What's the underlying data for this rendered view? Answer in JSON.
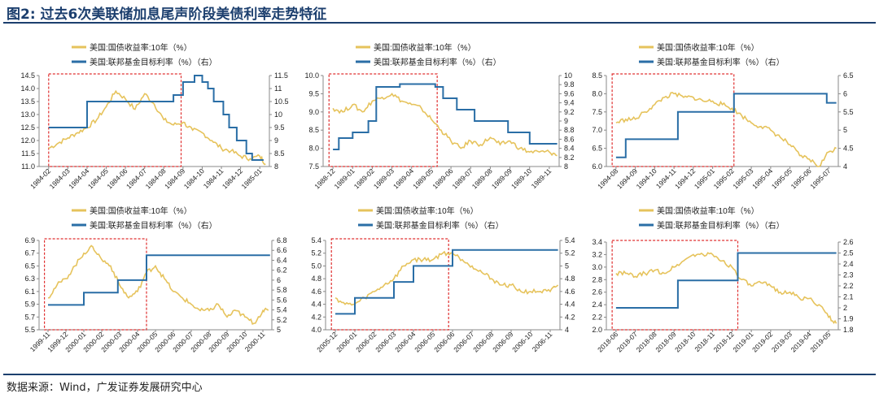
{
  "figure": {
    "title": "图2:  过去6次美联储加息尾声阶段美债利率走势特征",
    "source": "数据来源：Wind，广发证券发展研究中心"
  },
  "legend": {
    "yield": "美国:国债收益率:10年（%）",
    "fed": "美国:联邦基金目标利率（%）（右）"
  },
  "colors": {
    "yield": "#e6c35c",
    "fed": "#2a6ea6",
    "highlight": "#e03030",
    "title": "#1c3f6e"
  },
  "chart_data": [
    {
      "type": "line",
      "x_ticks": [
        "1984-02",
        "1984-03",
        "1984-04",
        "1984-05",
        "1984-06",
        "1984-07",
        "1984-08",
        "1984-09",
        "1984-10",
        "1984-11",
        "1984-12",
        "1985-01"
      ],
      "left_axis": {
        "ylim": [
          11.0,
          14.5
        ],
        "ticks": [
          "11.0",
          "11.5",
          "12.0",
          "12.5",
          "13.0",
          "13.5",
          "14.0",
          "14.5"
        ]
      },
      "right_axis": {
        "ylim": [
          8.0,
          11.5
        ],
        "ticks": [
          "8",
          "8.5",
          "9",
          "9.5",
          "10",
          "10.5",
          "11",
          "11.5"
        ]
      },
      "series": [
        {
          "name": "美国:国债收益率:10年（%）",
          "axis": "left",
          "x": [
            0,
            0.5,
            1,
            1.5,
            2,
            2.5,
            3,
            3.5,
            4,
            4.5,
            5,
            5.5,
            6,
            6.5,
            7,
            7.5,
            8,
            8.5,
            9,
            9.5,
            10,
            10.5,
            11,
            11.3
          ],
          "values": [
            11.7,
            11.9,
            12.1,
            12.3,
            12.5,
            12.8,
            13.3,
            13.9,
            13.6,
            13.2,
            13.8,
            13.4,
            12.8,
            12.6,
            12.7,
            12.4,
            12.3,
            12.0,
            11.7,
            11.6,
            11.4,
            11.3,
            11.4,
            11.1
          ]
        },
        {
          "name": "美国:联邦基金目标利率（%）（右）",
          "axis": "right",
          "step": true,
          "x": [
            0,
            2,
            6.5,
            7,
            7.6,
            8,
            8.3,
            8.6,
            9.1,
            9.4,
            9.8,
            10.3,
            10.6,
            11.2
          ],
          "values": [
            9.5,
            10.5,
            10.75,
            11.25,
            11.5,
            11.25,
            11.0,
            10.5,
            10.0,
            9.5,
            9.0,
            8.5,
            8.25,
            8.25
          ]
        }
      ],
      "highlight": [
        0,
        6.9
      ]
    },
    {
      "type": "line",
      "x_ticks": [
        "1988-12",
        "1989-01",
        "1989-02",
        "1989-03",
        "1989-04",
        "1989-05",
        "1989-06",
        "1989-07",
        "1989-08",
        "1989-09",
        "1989-10",
        "1989-11"
      ],
      "left_axis": {
        "ylim": [
          7.5,
          10.0
        ],
        "ticks": [
          "7.5",
          "8.0",
          "8.5",
          "9.0",
          "9.5",
          "10.0"
        ]
      },
      "right_axis": {
        "ylim": [
          8.0,
          10.0
        ],
        "ticks": [
          "8",
          "8.2",
          "8.4",
          "8.6",
          "8.8",
          "9",
          "9.2",
          "9.4",
          "9.6",
          "9.8",
          "10"
        ]
      },
      "series": [
        {
          "name": "美国:国债收益率:10年（%）",
          "axis": "left",
          "x": [
            0,
            0.5,
            1,
            1.5,
            2,
            2.5,
            3,
            3.5,
            4,
            4.5,
            5,
            5.5,
            6,
            6.5,
            7,
            7.5,
            8,
            8.5,
            9,
            9.5,
            10,
            10.5,
            11,
            11.4
          ],
          "values": [
            9.1,
            9.0,
            9.2,
            9.0,
            9.3,
            9.4,
            9.5,
            9.3,
            9.2,
            9.1,
            8.8,
            8.5,
            8.2,
            8.0,
            8.2,
            8.1,
            8.3,
            8.1,
            8.2,
            8.0,
            7.9,
            7.9,
            7.9,
            7.8
          ]
        },
        {
          "name": "美国:联邦基金目标利率（%）（右）",
          "axis": "right",
          "step": true,
          "x": [
            0,
            0.3,
            1,
            1.8,
            2.2,
            3.4,
            5.2,
            5.6,
            6.3,
            7.2,
            8.9,
            10,
            11.4
          ],
          "values": [
            8.375,
            8.625,
            8.75,
            9.0,
            9.75,
            9.8125,
            9.75,
            9.5,
            9.25,
            9.0,
            8.75,
            8.5,
            8.5
          ]
        }
      ],
      "highlight": [
        -0.2,
        5.3
      ]
    },
    {
      "type": "line",
      "x_ticks": [
        "1994-08",
        "1994-09",
        "1994-10",
        "1994-11",
        "1994-12",
        "1995-01",
        "1995-02",
        "1995-03",
        "1995-04",
        "1995-05",
        "1995-06",
        "1995-07"
      ],
      "left_axis": {
        "ylim": [
          6.0,
          8.5
        ],
        "ticks": [
          "6.0",
          "6.5",
          "7.0",
          "7.5",
          "8.0",
          "8.5"
        ]
      },
      "right_axis": {
        "ylim": [
          4.0,
          6.5
        ],
        "ticks": [
          "4",
          "4.5",
          "5",
          "5.5",
          "6",
          "6.5"
        ]
      },
      "series": [
        {
          "name": "美国:国债收益率:10年（%）",
          "axis": "left",
          "x": [
            0,
            0.5,
            1,
            1.5,
            2,
            2.5,
            3,
            3.5,
            4,
            4.5,
            5,
            5.5,
            6,
            6.5,
            7,
            7.5,
            8,
            8.5,
            9,
            9.5,
            10,
            10.5,
            11,
            11.4
          ],
          "values": [
            7.2,
            7.3,
            7.3,
            7.5,
            7.7,
            7.9,
            8.0,
            7.9,
            7.9,
            7.8,
            7.8,
            7.7,
            7.6,
            7.4,
            7.2,
            7.1,
            7.0,
            6.8,
            6.6,
            6.3,
            6.2,
            6.0,
            6.4,
            6.5
          ]
        },
        {
          "name": "美国:联邦基金目标利率（%）（右）",
          "axis": "right",
          "step": true,
          "x": [
            0,
            0.5,
            1.4,
            3.2,
            6.1,
            10.9,
            11.4
          ],
          "values": [
            4.25,
            4.75,
            4.75,
            5.5,
            6.0,
            5.75,
            5.75
          ]
        }
      ],
      "highlight": [
        -0.2,
        6.1
      ]
    },
    {
      "type": "line",
      "x_ticks": [
        "1999-11",
        "1999-12",
        "2000-01",
        "2000-02",
        "2000-03",
        "2000-04",
        "2000-05",
        "2000-06",
        "2000-07",
        "2000-08",
        "2000-09",
        "2000-10",
        "2000-11"
      ],
      "left_axis": {
        "ylim": [
          5.5,
          6.9
        ],
        "ticks": [
          "5.5",
          "5.7",
          "5.9",
          "6.1",
          "6.3",
          "6.5",
          "6.7",
          "6.9"
        ]
      },
      "right_axis": {
        "ylim": [
          5.0,
          6.8
        ],
        "ticks": [
          "5",
          "5.2",
          "5.4",
          "5.6",
          "5.8",
          "6",
          "6.2",
          "6.4",
          "6.6",
          "6.8"
        ]
      },
      "series": [
        {
          "name": "美国:国债收益率:10年（%）",
          "axis": "left",
          "x": [
            0,
            0.5,
            1,
            1.5,
            2,
            2.5,
            3,
            3.5,
            4,
            4.5,
            5,
            5.5,
            6,
            6.5,
            7,
            7.5,
            8,
            8.5,
            9,
            9.5,
            10,
            10.5,
            11,
            11.5,
            12,
            12.3
          ],
          "values": [
            6.0,
            6.2,
            6.3,
            6.5,
            6.7,
            6.8,
            6.6,
            6.5,
            6.2,
            6.0,
            6.1,
            6.4,
            6.5,
            6.3,
            6.1,
            6.0,
            5.9,
            5.8,
            5.8,
            5.9,
            5.7,
            5.8,
            5.7,
            5.6,
            5.8,
            5.8
          ]
        },
        {
          "name": "美国:联邦基金目标利率（%）（右）",
          "axis": "right",
          "step": true,
          "x": [
            0,
            2,
            3.9,
            5.5,
            12.4
          ],
          "values": [
            5.5,
            5.75,
            6.0,
            6.5,
            6.5
          ]
        }
      ],
      "highlight": [
        -0.2,
        5.5
      ]
    },
    {
      "type": "line",
      "x_ticks": [
        "2005-12",
        "2006-01",
        "2006-02",
        "2006-03",
        "2006-04",
        "2006-05",
        "2006-06",
        "2006-07",
        "2006-08",
        "2006-09",
        "2006-10",
        "2006-11"
      ],
      "left_axis": {
        "ylim": [
          4.0,
          5.4
        ],
        "ticks": [
          "4.0",
          "4.2",
          "4.4",
          "4.6",
          "4.8",
          "5.0",
          "5.2",
          "5.4"
        ]
      },
      "right_axis": {
        "ylim": [
          4.0,
          5.4
        ],
        "ticks": [
          "4",
          "4.2",
          "4.4",
          "4.6",
          "4.8",
          "5",
          "5.2",
          "5.4"
        ]
      },
      "series": [
        {
          "name": "美国:国债收益率:10年（%）",
          "axis": "left",
          "x": [
            0,
            0.5,
            1,
            1.5,
            2,
            2.5,
            3,
            3.5,
            4,
            4.5,
            5,
            5.5,
            6,
            6.5,
            7,
            7.5,
            8,
            8.5,
            9,
            9.5,
            10,
            10.5,
            11,
            11.4
          ],
          "values": [
            4.5,
            4.4,
            4.4,
            4.5,
            4.6,
            4.7,
            4.8,
            5.0,
            5.1,
            5.1,
            5.1,
            5.2,
            5.2,
            5.1,
            5.0,
            4.9,
            4.8,
            4.7,
            4.7,
            4.6,
            4.6,
            4.6,
            4.6,
            4.7
          ]
        },
        {
          "name": "美国:联邦基金目标利率（%）（右）",
          "axis": "right",
          "step": true,
          "x": [
            0,
            1,
            2,
            3,
            4,
            5,
            6,
            11.4
          ],
          "values": [
            4.25,
            4.5,
            4.5,
            4.75,
            5.0,
            5.0,
            5.25,
            5.25
          ]
        }
      ],
      "highlight": [
        -0.2,
        5.8
      ]
    },
    {
      "type": "line",
      "x_ticks": [
        "2018-06",
        "2018-07",
        "2018-08",
        "2018-09",
        "2018-10",
        "2018-11",
        "2018-12",
        "2019-01",
        "2019-02",
        "2019-03",
        "2019-04",
        "2019-05"
      ],
      "left_axis": {
        "ylim": [
          2.0,
          3.4
        ],
        "ticks": [
          "2.0",
          "2.2",
          "2.4",
          "2.6",
          "2.8",
          "3.0",
          "3.2",
          "3.4"
        ]
      },
      "right_axis": {
        "ylim": [
          1.8,
          2.6
        ],
        "ticks": [
          "1.8",
          "1.9",
          "2",
          "2.1",
          "2.2",
          "2.3",
          "2.4",
          "2.5",
          "2.6"
        ]
      },
      "series": [
        {
          "name": "美国:国债收益率:10年（%）",
          "axis": "left",
          "x": [
            0,
            0.5,
            1,
            1.5,
            2,
            2.5,
            3,
            3.5,
            4,
            4.5,
            5,
            5.5,
            6,
            6.5,
            7,
            7.5,
            8,
            8.5,
            9,
            9.5,
            10,
            10.5,
            11,
            11.4
          ],
          "values": [
            2.9,
            2.9,
            2.85,
            2.9,
            2.95,
            2.9,
            3.0,
            3.1,
            3.2,
            3.2,
            3.2,
            3.1,
            3.0,
            2.8,
            2.7,
            2.75,
            2.7,
            2.6,
            2.6,
            2.5,
            2.5,
            2.4,
            2.2,
            2.1
          ]
        },
        {
          "name": "美国:联邦基金目标利率（%）（右）",
          "axis": "right",
          "step": true,
          "x": [
            0,
            3.2,
            6.3,
            11.4
          ],
          "values": [
            2.0,
            2.25,
            2.5,
            2.5
          ]
        }
      ],
      "highlight": [
        -0.2,
        6.3
      ]
    }
  ]
}
